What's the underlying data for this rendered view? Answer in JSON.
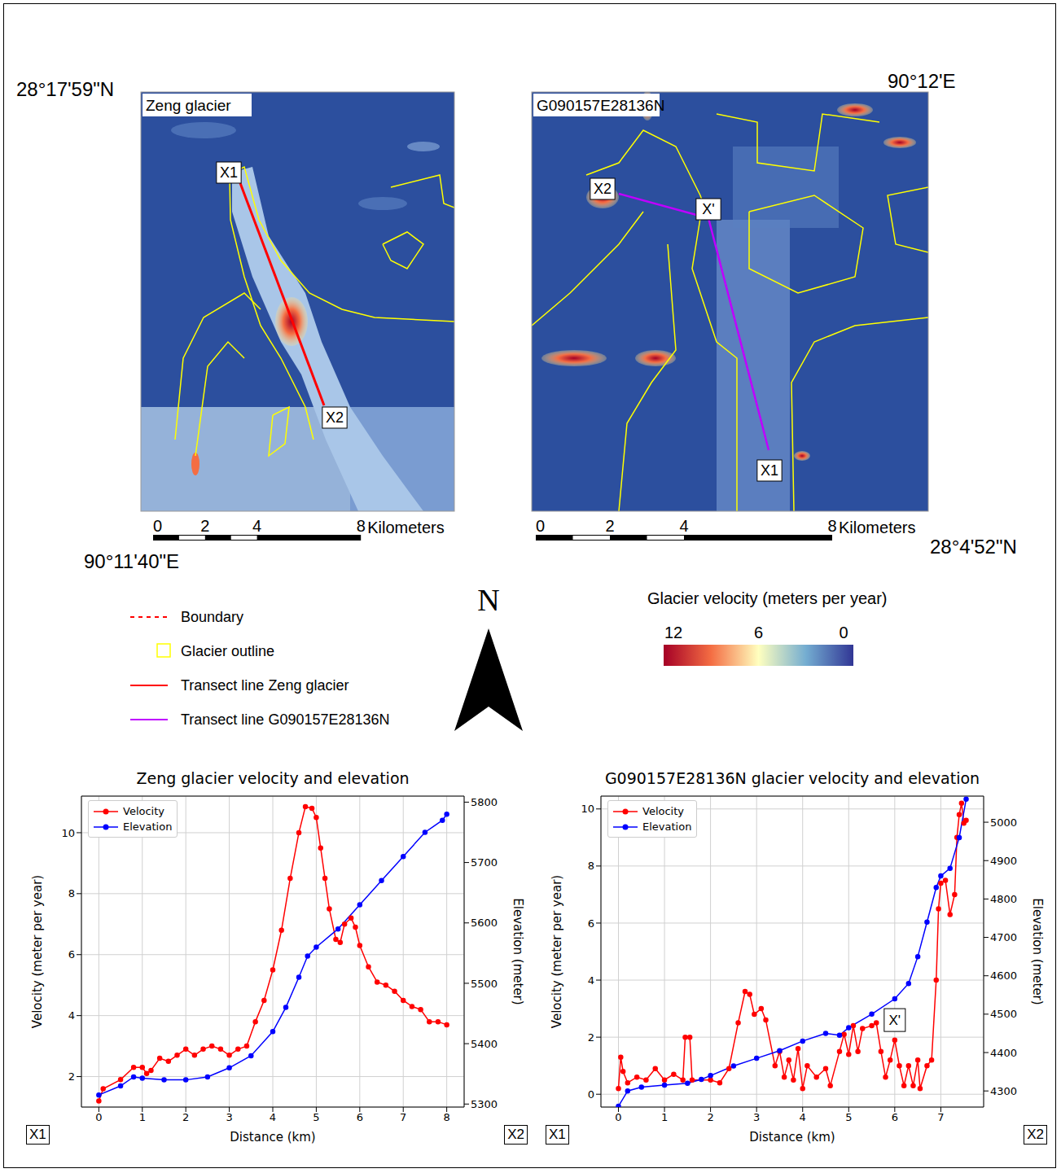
{
  "maps": [
    {
      "title": "Zeng glacier",
      "transect_labels": [
        "X1",
        "X2"
      ]
    },
    {
      "title": "G090157E28136N",
      "transect_labels": [
        "X2",
        "X'",
        "X1"
      ]
    }
  ],
  "scale_bar": {
    "ticks": [
      0,
      2,
      4,
      8
    ],
    "unit": "Kilometers"
  },
  "coordinates": {
    "top_left": "28°17'59\"N",
    "top_right": "90°12'E",
    "bottom_right": "28°4'52\"N",
    "bottom_left": "90°11'40\"E"
  },
  "map_legend": [
    {
      "label": "Boundary",
      "line_style": "dashed",
      "color": "#ff0000"
    },
    {
      "label": "Glacier outline",
      "line_style": "box",
      "color": "#ffff00"
    },
    {
      "label": "Transect line Zeng glacier",
      "line_style": "solid",
      "color": "#ff0000"
    },
    {
      "label": "Transect line G090157E28136N",
      "line_style": "solid",
      "color": "#bf00ff"
    }
  ],
  "north_label": "N",
  "colorbar": {
    "title": "Glacier velocity (meters per year)",
    "range": [
      12,
      0
    ],
    "ticks": [
      12,
      6,
      0
    ]
  },
  "chart_data": [
    {
      "type": "line",
      "title": "Zeng glacier velocity and elevation",
      "x_label": "Distance (km)",
      "y_label": "Velocity (meter per year)",
      "y2_label": "Elevation (meter)",
      "start_label": "X1",
      "end_label": "X2",
      "xlim": [
        -0.4,
        8.4
      ],
      "xticks": [
        0,
        1,
        2,
        3,
        4,
        5,
        6,
        7,
        8
      ],
      "ylim": [
        1.0,
        11.2
      ],
      "yticks": [
        2,
        4,
        6,
        8,
        10
      ],
      "y2lim": [
        5295,
        5810
      ],
      "y2ticks": [
        5300,
        5400,
        5500,
        5600,
        5700,
        5800
      ],
      "grid": true,
      "legend": "upper left",
      "series": [
        {
          "name": "Velocity",
          "color": "#ff0000",
          "marker": "o",
          "x": [
            0,
            0.1,
            0.5,
            0.8,
            1.0,
            1.1,
            1.2,
            1.4,
            1.6,
            1.8,
            2.0,
            2.2,
            2.4,
            2.6,
            2.8,
            3.0,
            3.2,
            3.4,
            3.6,
            3.8,
            4.0,
            4.2,
            4.4,
            4.6,
            4.75,
            4.9,
            5.0,
            5.1,
            5.2,
            5.3,
            5.45,
            5.55,
            5.65,
            5.8,
            5.9,
            6.0,
            6.2,
            6.4,
            6.6,
            6.8,
            7.0,
            7.2,
            7.4,
            7.6,
            7.8,
            8.0
          ],
          "values": [
            1.2,
            1.6,
            1.9,
            2.3,
            2.3,
            2.1,
            2.2,
            2.6,
            2.5,
            2.7,
            2.9,
            2.7,
            2.9,
            3.0,
            2.9,
            2.7,
            2.9,
            3.0,
            3.8,
            4.5,
            5.5,
            6.8,
            8.5,
            10.0,
            10.85,
            10.8,
            10.5,
            9.5,
            8.5,
            7.5,
            6.5,
            6.4,
            7.0,
            7.2,
            6.9,
            6.3,
            5.6,
            5.1,
            5.0,
            4.8,
            4.5,
            4.3,
            4.2,
            3.8,
            3.8,
            3.7
          ]
        },
        {
          "name": "Elevation",
          "color": "#0000ff",
          "marker": "o",
          "axis": "y2",
          "x": [
            0,
            0.5,
            0.8,
            1.0,
            1.5,
            2.0,
            2.5,
            3.0,
            3.5,
            4.0,
            4.3,
            4.6,
            4.8,
            5.0,
            5.5,
            6.0,
            6.5,
            7.0,
            7.5,
            7.9,
            8.0
          ],
          "values": [
            5315,
            5330,
            5345,
            5343,
            5340,
            5340,
            5345,
            5360,
            5380,
            5420,
            5460,
            5510,
            5545,
            5560,
            5590,
            5630,
            5670,
            5710,
            5750,
            5770,
            5780
          ]
        }
      ]
    },
    {
      "type": "line",
      "title": "G090157E28136N glacier velocity and elevation",
      "x_label": "Distance (km)",
      "y_label": "Velocity (meter per year)",
      "y2_label": "Elevation (meter)",
      "start_label": "X1",
      "end_label": "X2",
      "annotations": [
        {
          "text": "X'",
          "x": 6.0,
          "y": 2.6
        }
      ],
      "xlim": [
        -0.38,
        7.93
      ],
      "xticks": [
        0,
        1,
        2,
        3,
        4,
        5,
        6,
        7
      ],
      "ylim": [
        -0.45,
        10.45
      ],
      "yticks": [
        0,
        2,
        4,
        6,
        8,
        10
      ],
      "y2lim": [
        4258,
        5068
      ],
      "y2ticks": [
        4300,
        4400,
        4500,
        4600,
        4700,
        4800,
        4900,
        5000
      ],
      "grid": true,
      "legend": "upper left",
      "series": [
        {
          "name": "Velocity",
          "color": "#ff0000",
          "marker": "o",
          "x": [
            0,
            0.05,
            0.1,
            0.2,
            0.4,
            0.6,
            0.8,
            1.0,
            1.2,
            1.4,
            1.45,
            1.55,
            1.6,
            2.0,
            2.2,
            2.4,
            2.6,
            2.75,
            2.85,
            2.95,
            3.1,
            3.2,
            3.4,
            3.5,
            3.6,
            3.7,
            3.8,
            3.9,
            4.0,
            4.1,
            4.3,
            4.5,
            4.6,
            4.8,
            4.9,
            5.0,
            5.1,
            5.2,
            5.3,
            5.5,
            5.6,
            5.7,
            5.8,
            5.9,
            6.0,
            6.1,
            6.2,
            6.3,
            6.4,
            6.5,
            6.55,
            6.7,
            6.8,
            6.9,
            6.95,
            7.0,
            7.1,
            7.2,
            7.3,
            7.35,
            7.4,
            7.45,
            7.5,
            7.55
          ],
          "values": [
            0.2,
            1.3,
            0.8,
            0.4,
            0.6,
            0.5,
            0.9,
            0.5,
            0.7,
            0.5,
            2.0,
            2.0,
            0.5,
            0.5,
            0.4,
            0.9,
            2.5,
            3.6,
            3.5,
            2.8,
            3.0,
            2.6,
            1.0,
            1.5,
            0.6,
            1.2,
            0.5,
            1.6,
            0.2,
            1.0,
            0.6,
            0.9,
            0.3,
            1.5,
            2.1,
            1.4,
            2.4,
            1.5,
            2.3,
            2.4,
            2.5,
            1.5,
            0.6,
            1.2,
            1.9,
            1.0,
            0.3,
            1.0,
            0.3,
            1.2,
            0.2,
            1.0,
            1.2,
            4.0,
            6.5,
            7.4,
            7.5,
            6.3,
            7.0,
            9.0,
            9.8,
            10.2,
            9.5,
            9.6
          ]
        },
        {
          "name": "Elevation",
          "color": "#0000ff",
          "marker": "o",
          "axis": "y2",
          "x": [
            0,
            0.2,
            0.5,
            1.0,
            1.5,
            1.8,
            2.0,
            2.5,
            3.0,
            3.5,
            4.0,
            4.5,
            4.8,
            5.0,
            5.5,
            6.0,
            6.3,
            6.5,
            6.7,
            6.9,
            7.0,
            7.2,
            7.4,
            7.55
          ],
          "values": [
            4260,
            4300,
            4310,
            4315,
            4320,
            4330,
            4340,
            4365,
            4385,
            4405,
            4430,
            4450,
            4445,
            4465,
            4500,
            4540,
            4580,
            4650,
            4740,
            4830,
            4860,
            4880,
            4960,
            5060
          ]
        }
      ]
    }
  ]
}
